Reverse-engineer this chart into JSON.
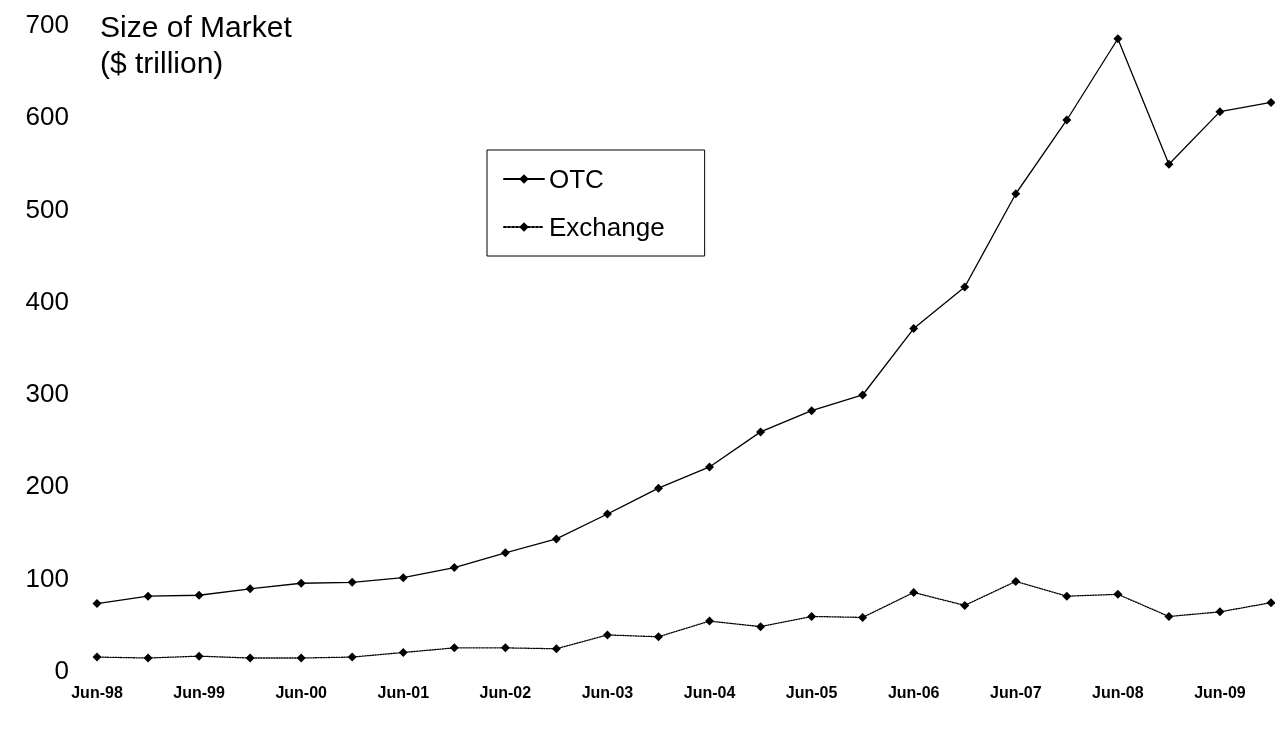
{
  "chart_data": {
    "type": "line",
    "ylabel": "Size of Market ($ trillion)",
    "categories": [
      "Jun-98",
      null,
      "Jun-99",
      null,
      "Jun-00",
      null,
      "Jun-01",
      null,
      "Jun-02",
      null,
      "Jun-03",
      null,
      "Jun-04",
      null,
      "Jun-05",
      null,
      "Jun-06",
      null,
      "Jun-07",
      null,
      "Jun-08",
      null,
      "Jun-09",
      null
    ],
    "series": [
      {
        "name": "OTC",
        "color": "#000000",
        "line_style": "solid",
        "values": [
          72,
          80,
          81,
          88,
          94,
          95,
          100,
          111,
          127,
          142,
          169,
          197,
          220,
          258,
          281,
          298,
          370,
          415,
          516,
          596,
          684,
          548,
          605,
          615
        ]
      },
      {
        "name": "Exchange",
        "color": "#000000",
        "line_style": "dotted",
        "values": [
          14,
          13,
          15,
          13,
          13,
          14,
          19,
          24,
          24,
          23,
          38,
          36,
          53,
          47,
          58,
          57,
          84,
          70,
          96,
          80,
          82,
          58,
          63,
          73
        ]
      }
    ],
    "ylim": [
      0,
      700
    ],
    "yticks": [
      0,
      100,
      200,
      300,
      400,
      500,
      600,
      700
    ],
    "grid": false,
    "legend": "top",
    "marker": "diamond"
  }
}
